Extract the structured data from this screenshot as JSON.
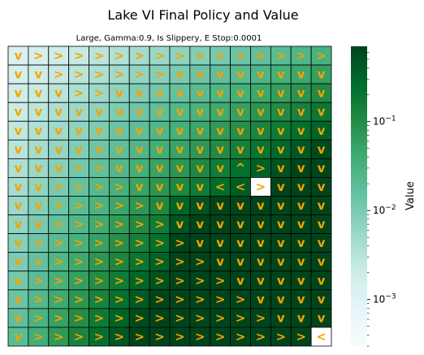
{
  "chart_data": {
    "type": "heatmap",
    "title": "Lake VI Final Policy and Value",
    "subtitle": "Large, Gamma:0.9, Is Slippery, E Stop:0.0001",
    "grid_size": [
      16,
      16
    ],
    "policy": [
      [
        "v",
        ">",
        ">",
        ">",
        ">",
        ">",
        ">",
        ">",
        ">",
        ">",
        ">",
        ">",
        ">",
        ">",
        ">",
        ">"
      ],
      [
        "v",
        "v",
        ">",
        ">",
        ">",
        ">",
        ">",
        ">",
        "v",
        "v",
        "v",
        "v",
        "v",
        "v",
        "v",
        "v"
      ],
      [
        "v",
        "v",
        "v",
        ">",
        ">",
        "v",
        "v",
        "v",
        "v",
        "v",
        "v",
        "v",
        "v",
        "v",
        "v",
        "v"
      ],
      [
        "v",
        "v",
        "v",
        "v",
        "v",
        "v",
        "v",
        "v",
        "v",
        "v",
        "v",
        "v",
        "v",
        "v",
        "v",
        "v"
      ],
      [
        "v",
        "v",
        "v",
        "v",
        "v",
        "v",
        "v",
        "v",
        "v",
        "v",
        "v",
        "v",
        "v",
        "v",
        "v",
        "v"
      ],
      [
        "v",
        "v",
        "v",
        "v",
        "v",
        "v",
        "v",
        "v",
        "v",
        "v",
        "v",
        "v",
        "v",
        "v",
        "v",
        "v"
      ],
      [
        "v",
        "v",
        "v",
        ">",
        ">",
        "v",
        "v",
        "v",
        "v",
        "v",
        "v",
        "^",
        ">",
        "v",
        "v",
        "v"
      ],
      [
        "v",
        "v",
        ">",
        ">",
        ">",
        ">",
        "v",
        "v",
        "v",
        "v",
        "<",
        "<",
        ">",
        "v",
        "v",
        "v"
      ],
      [
        "v",
        "v",
        ">",
        ">",
        ">",
        ">",
        ">",
        "v",
        "v",
        "v",
        "v",
        "v",
        "v",
        "v",
        "v",
        "v"
      ],
      [
        "v",
        "v",
        ">",
        ">",
        ">",
        ">",
        ">",
        ">",
        "v",
        "v",
        "v",
        "v",
        "v",
        "v",
        "v",
        "v"
      ],
      [
        "v",
        ">",
        ">",
        ">",
        ">",
        ">",
        ">",
        ">",
        ">",
        "v",
        "v",
        "v",
        "v",
        "v",
        "v",
        "v"
      ],
      [
        "v",
        ">",
        ">",
        ">",
        ">",
        ">",
        ">",
        ">",
        ">",
        ">",
        "v",
        "v",
        "v",
        "v",
        "v",
        "v"
      ],
      [
        "v",
        ">",
        ">",
        ">",
        ">",
        ">",
        ">",
        ">",
        ">",
        ">",
        ">",
        "v",
        "v",
        "v",
        "v",
        "v"
      ],
      [
        "v",
        ">",
        ">",
        ">",
        ">",
        ">",
        ">",
        ">",
        ">",
        ">",
        ">",
        ">",
        "v",
        "v",
        "v",
        "v"
      ],
      [
        "v",
        ">",
        ">",
        ">",
        ">",
        ">",
        ">",
        ">",
        ">",
        ">",
        ">",
        ">",
        ">",
        "v",
        "v",
        "v"
      ],
      [
        "v",
        ">",
        ">",
        ">",
        ">",
        ">",
        ">",
        ">",
        ">",
        ">",
        ">",
        ">",
        ">",
        ">",
        ">",
        "<"
      ]
    ],
    "colorbar": {
      "label": "Value",
      "scale": "log",
      "range": [
        0.0003,
        0.7
      ],
      "colormap": "BuGn",
      "tick_labels": [
        "10^-1",
        "10^-2",
        "10^-3"
      ],
      "tick_values": [
        0.1,
        0.01,
        0.001
      ]
    },
    "arrow_color": "#f5a300",
    "white_cells": [
      [
        7,
        12
      ],
      [
        15,
        15
      ]
    ]
  }
}
